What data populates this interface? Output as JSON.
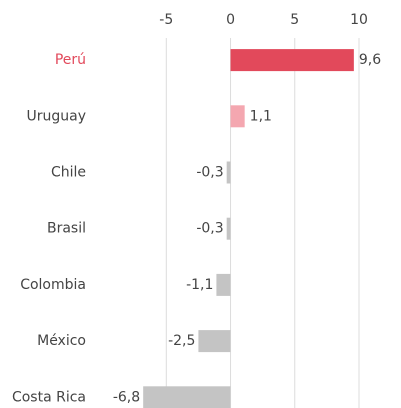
{
  "chart_data": {
    "type": "bar",
    "orientation": "horizontal",
    "categories": [
      "Perú",
      "Uruguay",
      "Chile",
      "Brasil",
      "Colombia",
      "México",
      "Costa Rica"
    ],
    "values": [
      9.6,
      1.1,
      -0.3,
      -0.3,
      -1.1,
      -2.5,
      -6.8
    ],
    "value_labels": [
      "9,6",
      "1,1",
      "-0,3",
      "-0,3",
      "-1,1",
      "-2,5",
      "-6,8"
    ],
    "colors": [
      "#e2495b",
      "#f4a7b0",
      "#c4c4c4",
      "#c4c4c4",
      "#c4c4c4",
      "#c4c4c4",
      "#c4c4c4"
    ],
    "label_colors": [
      "#e2495b",
      "#444444",
      "#444444",
      "#444444",
      "#444444",
      "#444444",
      "#444444"
    ],
    "xlim": [
      -7,
      10
    ],
    "xticks": [
      -5,
      0,
      5,
      10
    ],
    "grid": true
  }
}
